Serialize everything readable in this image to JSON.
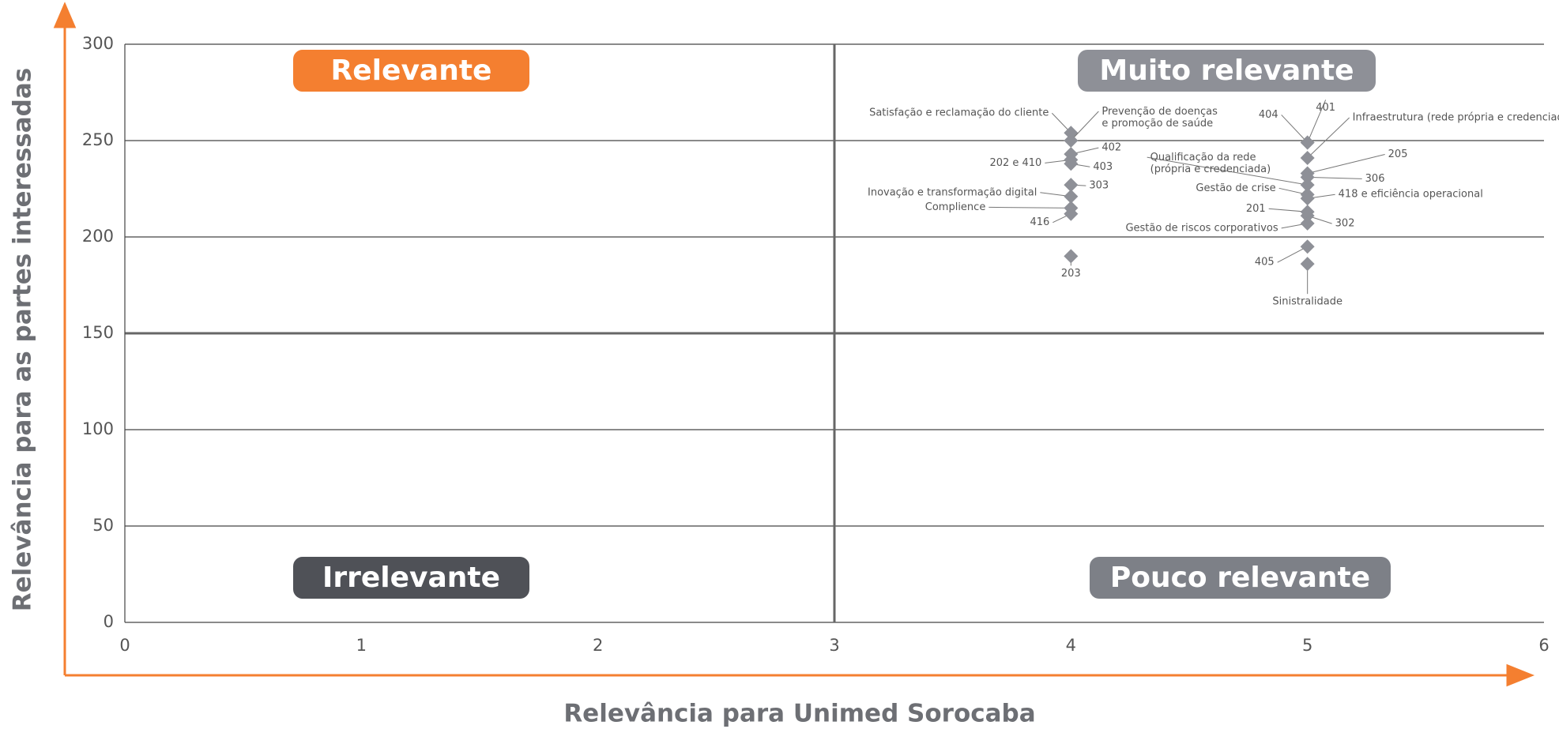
{
  "chart_data": {
    "type": "scatter",
    "xlabel": "Relevância para Unimed Sorocaba",
    "ylabel": "Relevância para as partes interessadas",
    "xlim": [
      0,
      6
    ],
    "xticks": [
      0,
      1,
      2,
      3,
      4,
      5,
      6
    ],
    "ylim": [
      0,
      300
    ],
    "yticks": [
      0,
      50,
      100,
      150,
      200,
      250,
      300
    ],
    "grid": true,
    "quadrants": [
      {
        "label": "Relevante",
        "color": "#f47f30"
      },
      {
        "label": "Muito relevante",
        "color": "#8e9097"
      },
      {
        "label": "Irrelevante",
        "color": "#4f5157"
      },
      {
        "label": "Pouco relevante",
        "color": "#7d8087"
      }
    ],
    "series": [
      {
        "color": "#8e9097",
        "labels": [
          "Satisfação e reclamação do cliente",
          "Prevenção de doenças\ne promoção de saúde",
          "402",
          "202 e 410",
          "403",
          "303",
          "Inovação e transformação digital",
          "Complience",
          "416",
          "203",
          "404",
          "401",
          "Infraestrutura (rede própria e credenciada)",
          "205",
          "306",
          "Qualificação da rede\n(própria e credenciada)",
          "Gestão de crise",
          "418 e eficiência operacional",
          "201",
          "302",
          "Gestão de riscos corporativos",
          "405",
          "Sinistralidade"
        ],
        "x": [
          4,
          4,
          4,
          4,
          4,
          4,
          4,
          4,
          4,
          4,
          5,
          5,
          5,
          5,
          5,
          5,
          5,
          5,
          5,
          5,
          5,
          5,
          5
        ],
        "values": [
          254,
          250,
          243,
          240,
          238,
          227,
          221,
          215,
          212,
          190,
          249,
          249,
          241,
          233,
          231,
          227,
          222,
          220,
          213,
          211,
          207,
          195,
          186
        ]
      }
    ]
  }
}
